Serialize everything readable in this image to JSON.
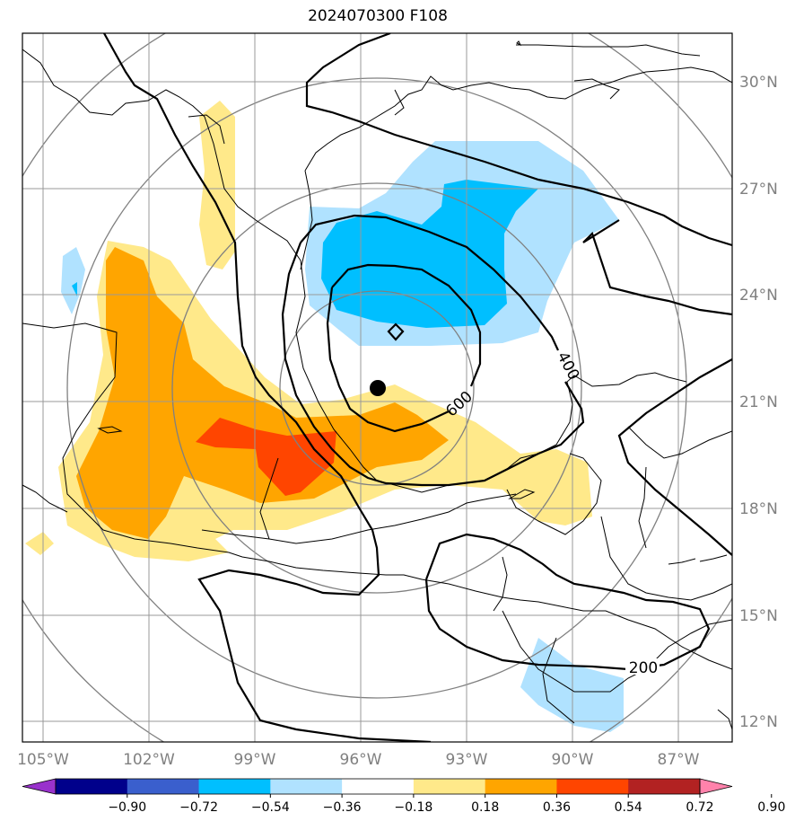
{
  "title": "2024070300 F108",
  "lon_labels": [
    "105°W",
    "102°W",
    "99°W",
    "96°W",
    "93°W",
    "90°W",
    "87°W"
  ],
  "lat_labels": [
    "30°N",
    "27°N",
    "24°N",
    "21°N",
    "18°N",
    "15°N",
    "12°N"
  ],
  "contour_labels": [
    "600",
    "400",
    "200"
  ],
  "colorbar": {
    "tick_labels": [
      "−0.90",
      "−0.72",
      "−0.54",
      "−0.36",
      "−0.18",
      "0.18",
      "0.36",
      "0.54",
      "0.72",
      "0.90"
    ],
    "colors": [
      "#9932cc",
      "#00008b",
      "#3a5fcd",
      "#00bfff",
      "#b0e2ff",
      "#ffffff",
      "#ffe98a",
      "#ffa500",
      "#ff4500",
      "#b22222",
      "#ff82ab"
    ]
  },
  "storm_marker": "storm-center"
}
